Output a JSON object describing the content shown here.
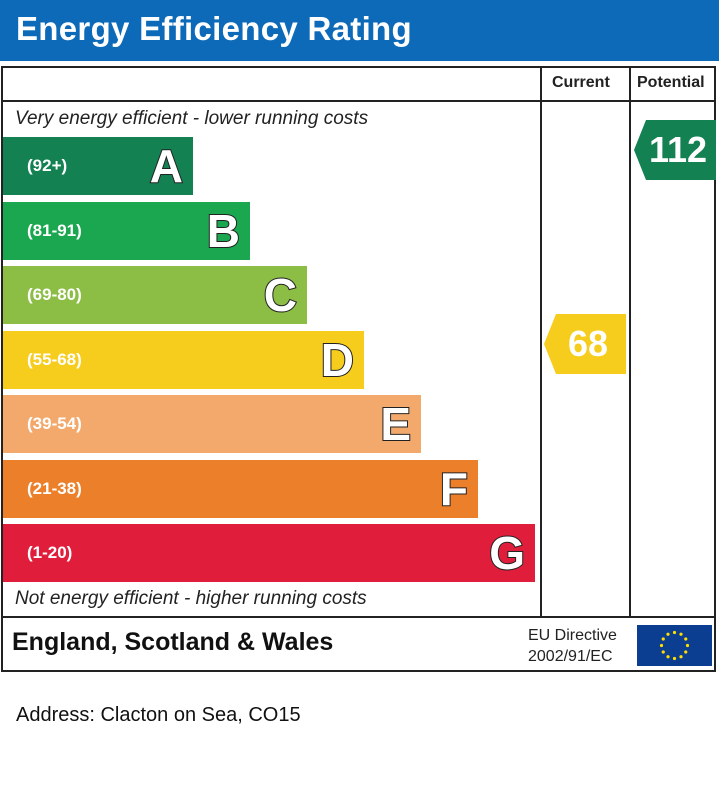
{
  "title": "Energy Efficiency Rating",
  "columns": {
    "current": "Current",
    "potential": "Potential"
  },
  "captions": {
    "top": "Very energy efficient - lower running costs",
    "bottom": "Not energy efficient - higher running costs"
  },
  "chart_data": {
    "type": "bar",
    "bands": [
      {
        "letter": "A",
        "range": "(92+)",
        "color": "#138152"
      },
      {
        "letter": "B",
        "range": "(81-91)",
        "color": "#1ba650"
      },
      {
        "letter": "C",
        "range": "(69-80)",
        "color": "#8cbd45"
      },
      {
        "letter": "D",
        "range": "(55-68)",
        "color": "#f6cd1c"
      },
      {
        "letter": "E",
        "range": "(39-54)",
        "color": "#f2a96b"
      },
      {
        "letter": "F",
        "range": "(21-38)",
        "color": "#ec7f29"
      },
      {
        "letter": "G",
        "range": "(1-20)",
        "color": "#e01e3c"
      }
    ],
    "current": {
      "value": "68",
      "band": "D",
      "color": "#f6cd1c"
    },
    "potential": {
      "value": "112",
      "band": "A",
      "color": "#138152"
    }
  },
  "footer": {
    "region": "England, Scotland & Wales",
    "directive_line1": "EU Directive",
    "directive_line2": "2002/91/EC",
    "flag_icon": "eu-flag-icon"
  },
  "address": "Address: Clacton on Sea, CO15"
}
